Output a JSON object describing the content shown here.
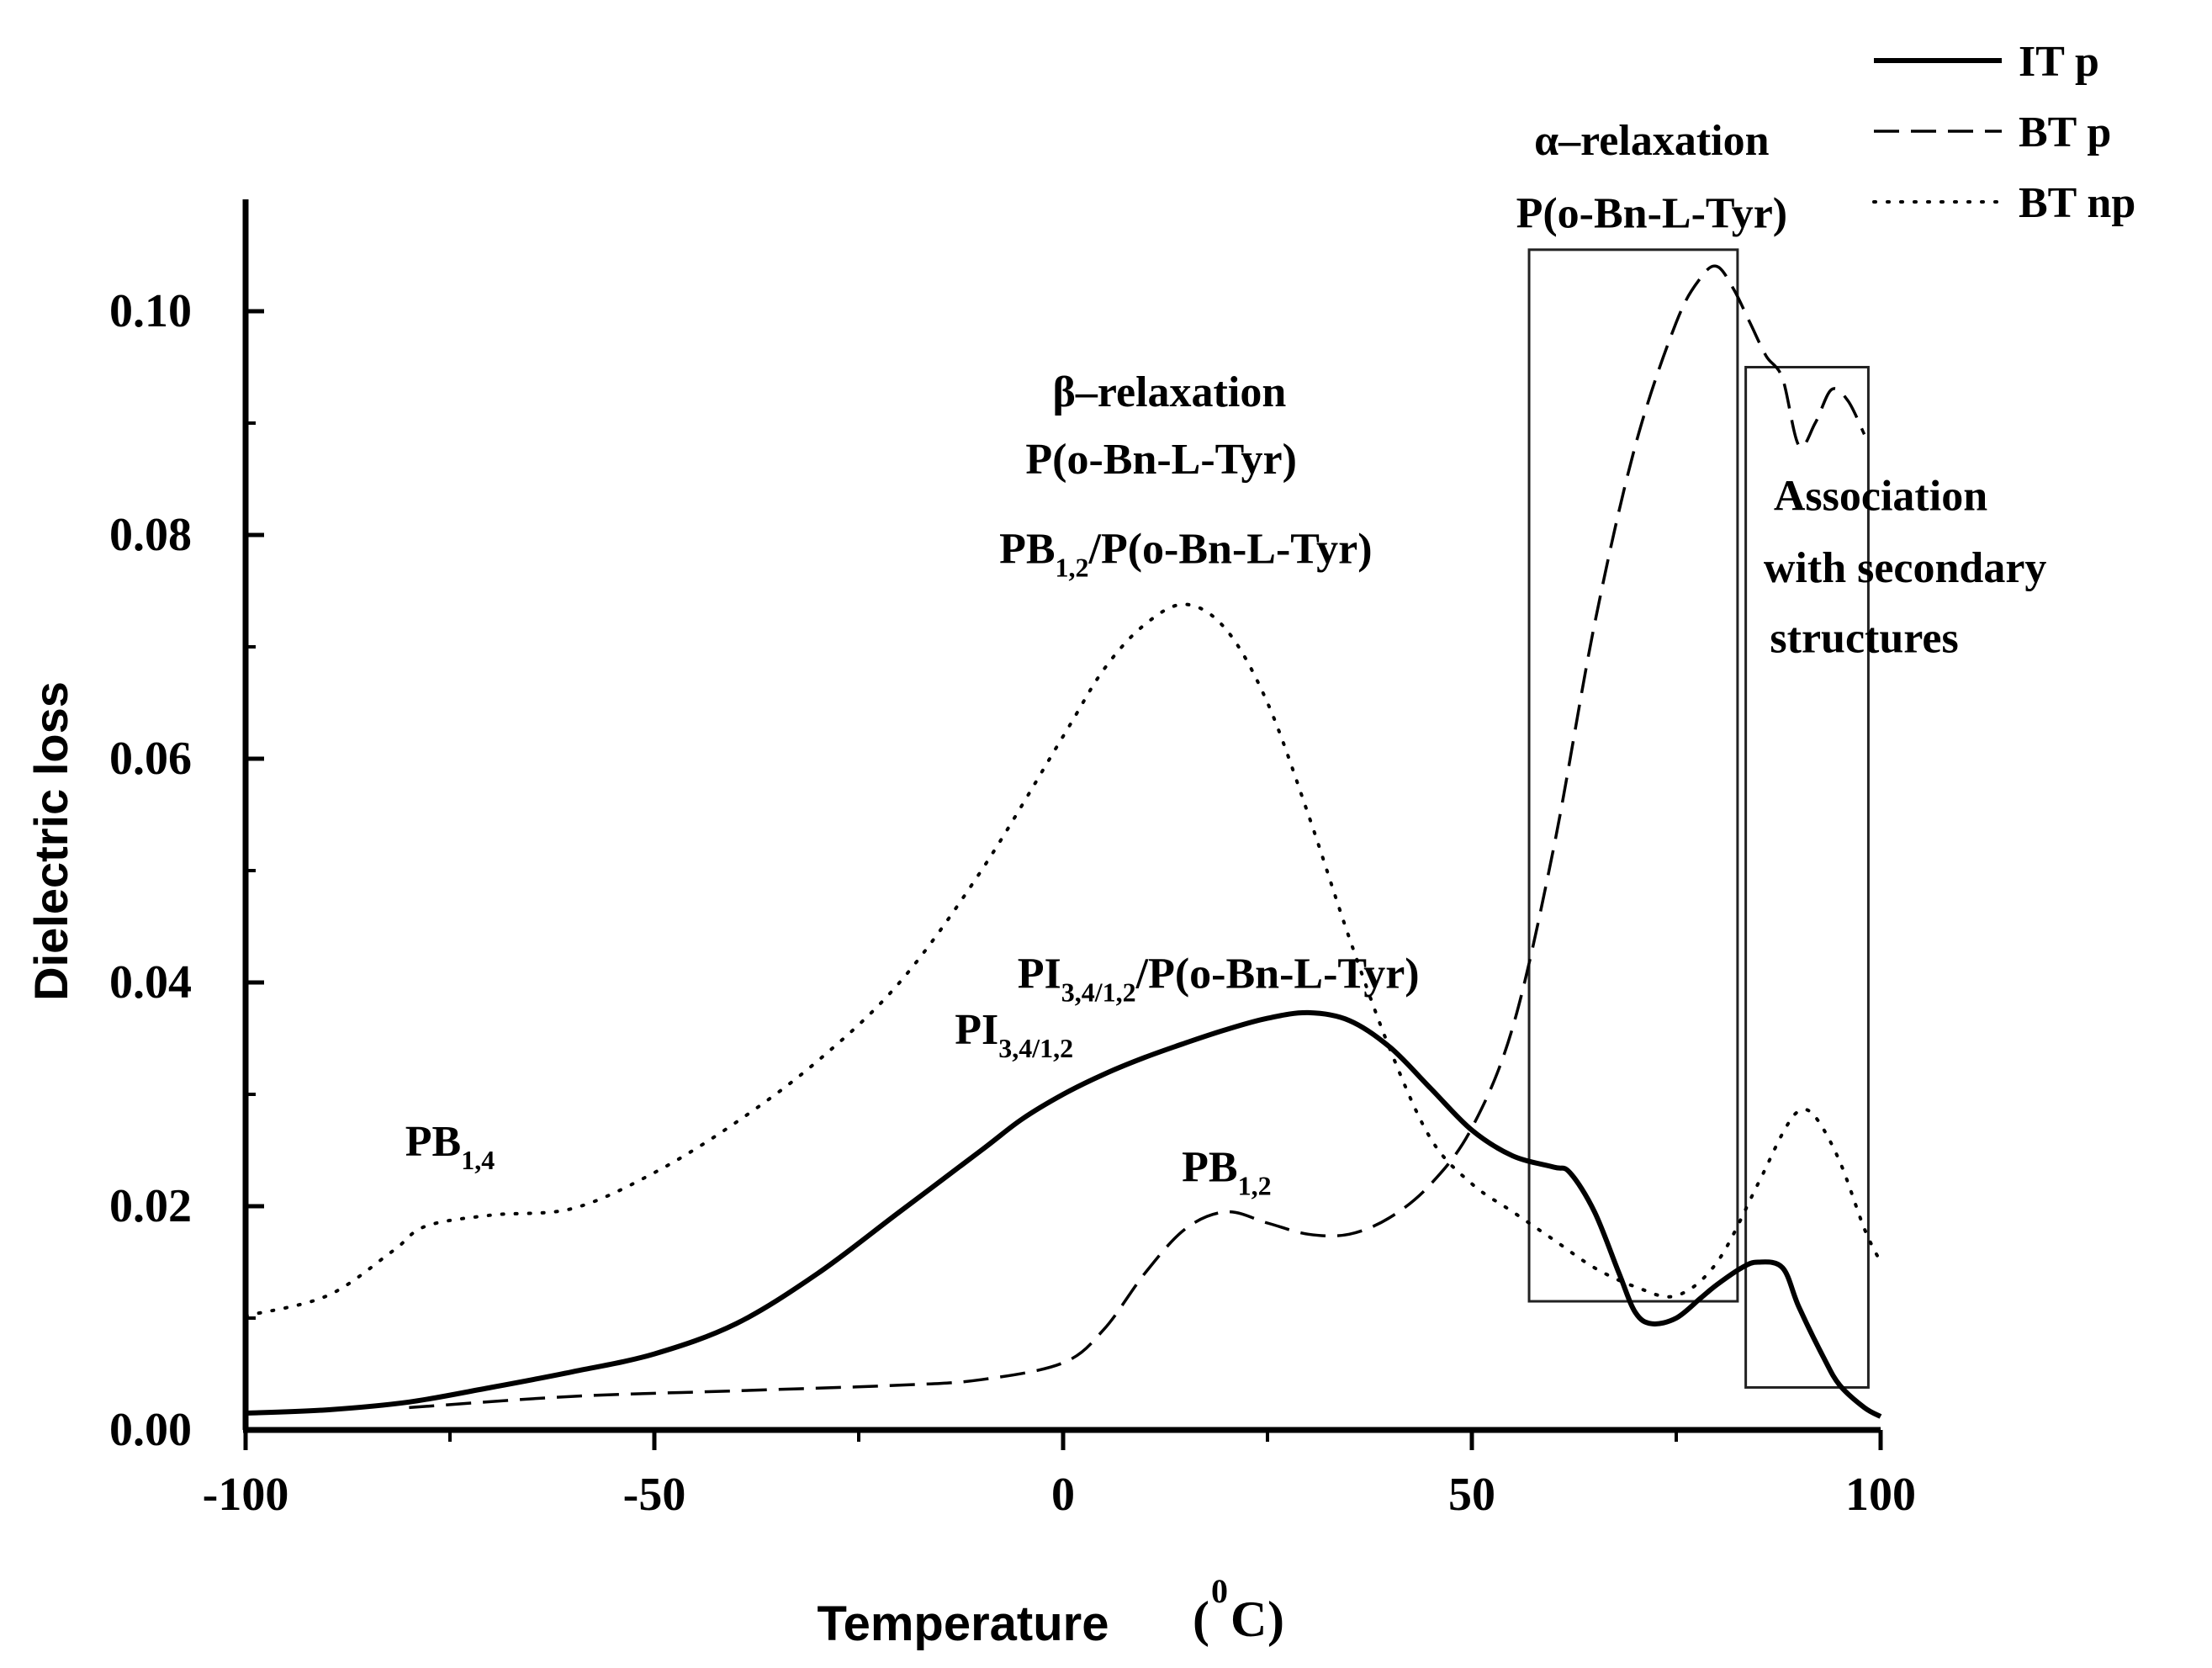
{
  "chart_data": {
    "type": "line",
    "xlabel": "Temperature",
    "xlabel_unit_base": "C",
    "xlabel_unit_sup": "0",
    "ylabel": "Dielectric loss",
    "xlim": [
      -100,
      100
    ],
    "ylim": [
      0.0,
      0.11
    ],
    "x_ticks": [
      -100,
      -50,
      0,
      50,
      100
    ],
    "x_tick_labels": [
      "-100",
      "-50",
      "0",
      "50",
      "100"
    ],
    "y_ticks": [
      0.0,
      0.02,
      0.04,
      0.06,
      0.08,
      0.1
    ],
    "y_tick_labels": [
      "0.00",
      "0.02",
      "0.04",
      "0.06",
      "0.08",
      "0.10"
    ],
    "legend_position": "top-right",
    "series": [
      {
        "name": "IT p",
        "style": "solid",
        "x": [
          -100,
          -90,
          -80,
          -70,
          -60,
          -50,
          -40,
          -30,
          -20,
          -10,
          -5,
          0,
          5,
          10,
          15,
          20,
          25,
          30,
          35,
          40,
          45,
          50,
          55,
          60,
          62,
          65,
          68,
          70,
          72,
          75,
          78,
          80,
          83,
          85,
          88,
          90,
          93,
          95,
          98,
          100
        ],
        "y": [
          0.0015,
          0.0018,
          0.0025,
          0.0038,
          0.0052,
          0.0068,
          0.0095,
          0.014,
          0.0195,
          0.025,
          0.0278,
          0.03,
          0.0318,
          0.0333,
          0.0346,
          0.0358,
          0.0368,
          0.0373,
          0.0366,
          0.0342,
          0.0305,
          0.0268,
          0.0245,
          0.0235,
          0.023,
          0.0195,
          0.014,
          0.0105,
          0.0095,
          0.01,
          0.0118,
          0.013,
          0.0145,
          0.015,
          0.0145,
          0.011,
          0.0065,
          0.004,
          0.002,
          0.0012
        ]
      },
      {
        "name": "BT p",
        "style": "dashed",
        "x": [
          -80,
          -60,
          -40,
          -20,
          -10,
          0,
          5,
          10,
          15,
          20,
          25,
          30,
          35,
          40,
          45,
          50,
          55,
          60,
          65,
          70,
          75,
          78,
          80,
          82,
          84,
          86,
          88,
          90,
          92,
          94,
          96,
          98
        ],
        "y": [
          0.002,
          0.003,
          0.0035,
          0.004,
          0.0045,
          0.006,
          0.009,
          0.014,
          0.018,
          0.0195,
          0.0185,
          0.0175,
          0.0175,
          0.019,
          0.022,
          0.027,
          0.036,
          0.052,
          0.072,
          0.088,
          0.099,
          0.103,
          0.104,
          0.102,
          0.099,
          0.096,
          0.094,
          0.088,
          0.09,
          0.093,
          0.092,
          0.089
        ]
      },
      {
        "name": "BT np",
        "style": "dotted",
        "x": [
          -100,
          -90,
          -82,
          -78,
          -70,
          -60,
          -50,
          -40,
          -30,
          -20,
          -10,
          0,
          5,
          10,
          15,
          20,
          25,
          30,
          35,
          40,
          45,
          50,
          55,
          60,
          65,
          70,
          75,
          80,
          85,
          88,
          90,
          92,
          95,
          98,
          100
        ],
        "y": [
          0.0102,
          0.012,
          0.016,
          0.0182,
          0.0192,
          0.0198,
          0.023,
          0.0275,
          0.033,
          0.04,
          0.05,
          0.062,
          0.068,
          0.072,
          0.0738,
          0.0715,
          0.065,
          0.055,
          0.044,
          0.034,
          0.026,
          0.022,
          0.0195,
          0.017,
          0.0145,
          0.0128,
          0.012,
          0.015,
          0.022,
          0.0265,
          0.0285,
          0.028,
          0.024,
          0.018,
          0.015
        ]
      }
    ],
    "annotations": [
      {
        "text": "PB",
        "sub": "1,4",
        "x": -75,
        "y": 0.0245
      },
      {
        "text": "PB",
        "sub": "1,2",
        "x": 20,
        "y": 0.0222
      },
      {
        "text": "PI",
        "sub": "3,4/1,2",
        "x": -6,
        "y": 0.0345
      },
      {
        "text": "PI",
        "sub": "3,4/1,2",
        "text2": "/P(o-Bn-L-Tyr)",
        "x": 19,
        "y": 0.0395
      },
      {
        "text": "β–relaxation",
        "x": 13,
        "y": 0.0915
      },
      {
        "text": "P(o-Bn-L-Tyr)",
        "x": 12,
        "y": 0.0855
      },
      {
        "text": "PB",
        "sub": "1,2",
        "text2": "/P(o-Bn-L-Tyr)",
        "x": 15,
        "y": 0.0775
      },
      {
        "text": "α–relaxation",
        "x": 72,
        "y": 0.114
      },
      {
        "text": "P(o-Bn-L-Tyr)",
        "x": 72,
        "y": 0.1075
      },
      {
        "text": "Association",
        "x": 100,
        "y": 0.0822
      },
      {
        "text": "with secondary",
        "x": 103,
        "y": 0.0758
      },
      {
        "text": "structures",
        "x": 98,
        "y": 0.0695
      }
    ],
    "boxes": [
      {
        "name": "alpha-relaxation-region",
        "x": [
          57,
          82.5
        ],
        "y": [
          0.0115,
          0.1055
        ]
      },
      {
        "name": "secondary-structure-region",
        "x": [
          83.5,
          98.5
        ],
        "y": [
          0.0038,
          0.095
        ]
      }
    ]
  }
}
